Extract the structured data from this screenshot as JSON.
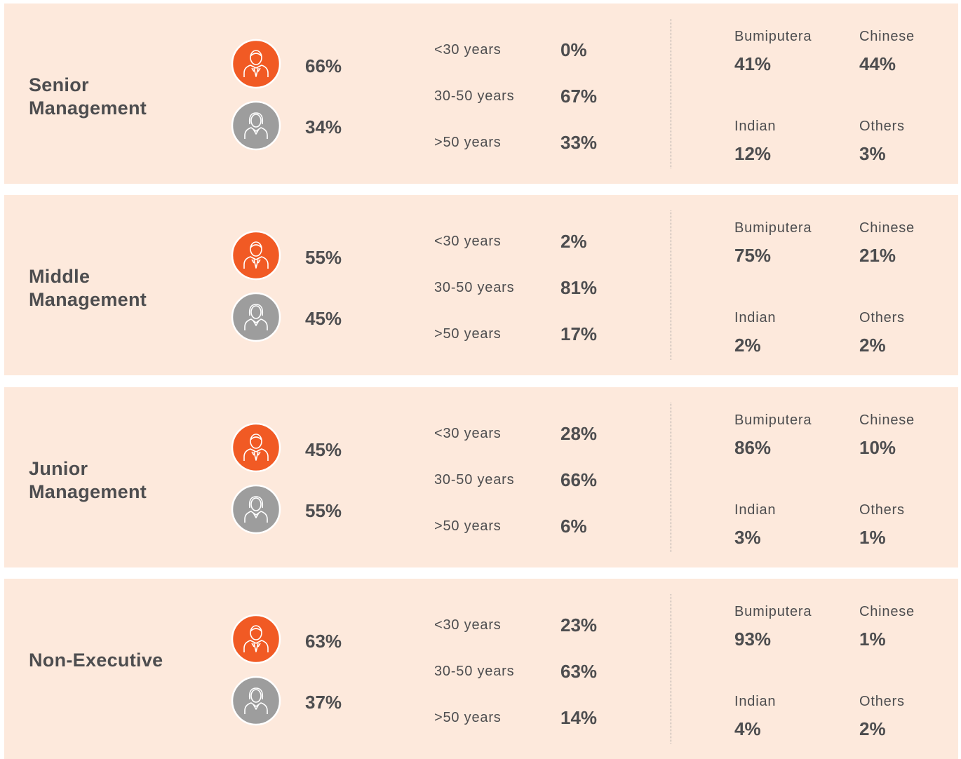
{
  "rows": [
    {
      "label": "Senior Management",
      "male": "66%",
      "female": "34%",
      "ages": [
        {
          "label": "<30 years",
          "value": "0%"
        },
        {
          "label": "30-50 years",
          "value": "67%"
        },
        {
          "label": ">50 years",
          "value": "33%"
        }
      ],
      "ethnicity": [
        {
          "label": "Bumiputera",
          "value": "41%"
        },
        {
          "label": "Chinese",
          "value": "44%"
        },
        {
          "label": "Indian",
          "value": "12%"
        },
        {
          "label": "Others",
          "value": "3%"
        }
      ]
    },
    {
      "label": "Middle Management",
      "male": "55%",
      "female": "45%",
      "ages": [
        {
          "label": "<30 years",
          "value": "2%"
        },
        {
          "label": "30-50 years",
          "value": "81%"
        },
        {
          "label": ">50 years",
          "value": "17%"
        }
      ],
      "ethnicity": [
        {
          "label": "Bumiputera",
          "value": "75%"
        },
        {
          "label": "Chinese",
          "value": "21%"
        },
        {
          "label": "Indian",
          "value": "2%"
        },
        {
          "label": "Others",
          "value": "2%"
        }
      ]
    },
    {
      "label": "Junior Management",
      "male": "45%",
      "female": "55%",
      "ages": [
        {
          "label": "<30 years",
          "value": "28%"
        },
        {
          "label": "30-50 years",
          "value": "66%"
        },
        {
          "label": ">50 years",
          "value": "6%"
        }
      ],
      "ethnicity": [
        {
          "label": "Bumiputera",
          "value": "86%"
        },
        {
          "label": "Chinese",
          "value": "10%"
        },
        {
          "label": "Indian",
          "value": "3%"
        },
        {
          "label": "Others",
          "value": "1%"
        }
      ]
    },
    {
      "label": "Non-Executive",
      "male": "63%",
      "female": "37%",
      "ages": [
        {
          "label": "<30 years",
          "value": "23%"
        },
        {
          "label": "30-50 years",
          "value": "63%"
        },
        {
          "label": ">50 years",
          "value": "14%"
        }
      ],
      "ethnicity": [
        {
          "label": "Bumiputera",
          "value": "93%"
        },
        {
          "label": "Chinese",
          "value": "1%"
        },
        {
          "label": "Indian",
          "value": "4%"
        },
        {
          "label": "Others",
          "value": "2%"
        }
      ]
    }
  ]
}
